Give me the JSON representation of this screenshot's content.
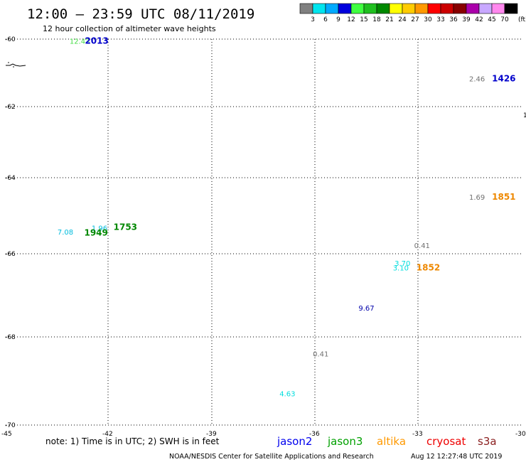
{
  "chart_data": {
    "type": "scatter",
    "title": "12:00 – 23:59 UTC 08/11/2019",
    "subtitle": "12 hour collection of altimeter wave heights",
    "xlim": [
      -45,
      -30
    ],
    "ylim": [
      -70,
      -60
    ],
    "x_ticks": [
      "-45",
      "-42",
      "-39",
      "-36",
      "-33",
      "-30"
    ],
    "y_ticks": [
      "-60",
      "-62",
      "-64",
      "-66",
      "-68",
      "-70"
    ],
    "x_tick_values": [
      -45,
      -42,
      -39,
      -36,
      -33,
      -30
    ],
    "y_tick_values": [
      -60,
      -62,
      -64,
      -66,
      -68,
      -70
    ],
    "edge_label": "1",
    "colorbar": {
      "labels": [
        "3",
        "6",
        "9",
        "12",
        "15",
        "18",
        "21",
        "24",
        "27",
        "30",
        "33",
        "36",
        "39",
        "42",
        "45",
        "70"
      ],
      "unit": "(ft)",
      "colors": [
        "#808080",
        "#00e5ee",
        "#00aaff",
        "#0000dd",
        "#40ff40",
        "#20c020",
        "#008800",
        "#ffff00",
        "#ffcc00",
        "#ff9900",
        "#ff0000",
        "#cc0000",
        "#880000",
        "#aa00aa",
        "#c8a8ff",
        "#ff88ee",
        "#000000"
      ]
    },
    "points": [
      {
        "text": "12.43",
        "x": -42.83,
        "y": -60.05,
        "color": "#44dd44"
      },
      {
        "text": "2.46",
        "x": -31.28,
        "y": -61.17,
        "color": "#707070"
      },
      {
        "text": "1.69",
        "x": -31.28,
        "y": -64.5,
        "color": "#707070"
      },
      {
        "text": "7.08",
        "x": -43.25,
        "y": -65.42,
        "color": "#00bbdd"
      },
      {
        "text": "1.96",
        "x": -42.25,
        "y": -65.32,
        "color": "#00bbdd"
      },
      {
        "text": "0.41",
        "x": -32.88,
        "y": -65.78,
        "color": "#707070"
      },
      {
        "text": "3.70",
        "x": -33.45,
        "y": -66.22,
        "color": "#00dddd"
      },
      {
        "text": "3.10",
        "x": -33.5,
        "y": -66.33,
        "color": "#00dddd"
      },
      {
        "text": "9.67",
        "x": -34.5,
        "y": -67.3,
        "color": "#0000aa"
      },
      {
        "text": "0.41",
        "x": -35.83,
        "y": -68.38,
        "color": "#707070"
      },
      {
        "text": "4.63",
        "x": -36.8,
        "y": -69.28,
        "color": "#00dddd"
      }
    ],
    "track_times": [
      {
        "text": "2013",
        "x": -42.33,
        "y": -60.05,
        "color": "#0000cc"
      },
      {
        "text": "1426",
        "x": -30.5,
        "y": -61.17,
        "color": "#0000cc"
      },
      {
        "text": "1851",
        "x": -30.5,
        "y": -64.5,
        "color": "#ee8800"
      },
      {
        "text": "1753",
        "x": -41.5,
        "y": -65.3,
        "color": "#008800"
      },
      {
        "text": "1949",
        "x": -42.35,
        "y": -65.45,
        "color": "#008800"
      },
      {
        "text": "1852",
        "x": -32.7,
        "y": -66.33,
        "color": "#ee8800"
      }
    ]
  },
  "footer": {
    "note": "note:  1) Time is in UTC;  2) SWH is in feet",
    "legend": [
      {
        "name": "jason2",
        "color": "#0000ee"
      },
      {
        "name": "jason3",
        "color": "#00a000"
      },
      {
        "name": "altika",
        "color": "#ff9900"
      },
      {
        "name": "cryosat",
        "color": "#ee0000"
      },
      {
        "name": "s3a",
        "color": "#8b2020"
      }
    ],
    "credit": "NOAA/NESDIS Center for Satellite Applications and Research",
    "timestamp": "Aug 12 12:27:48 UTC 2019"
  }
}
